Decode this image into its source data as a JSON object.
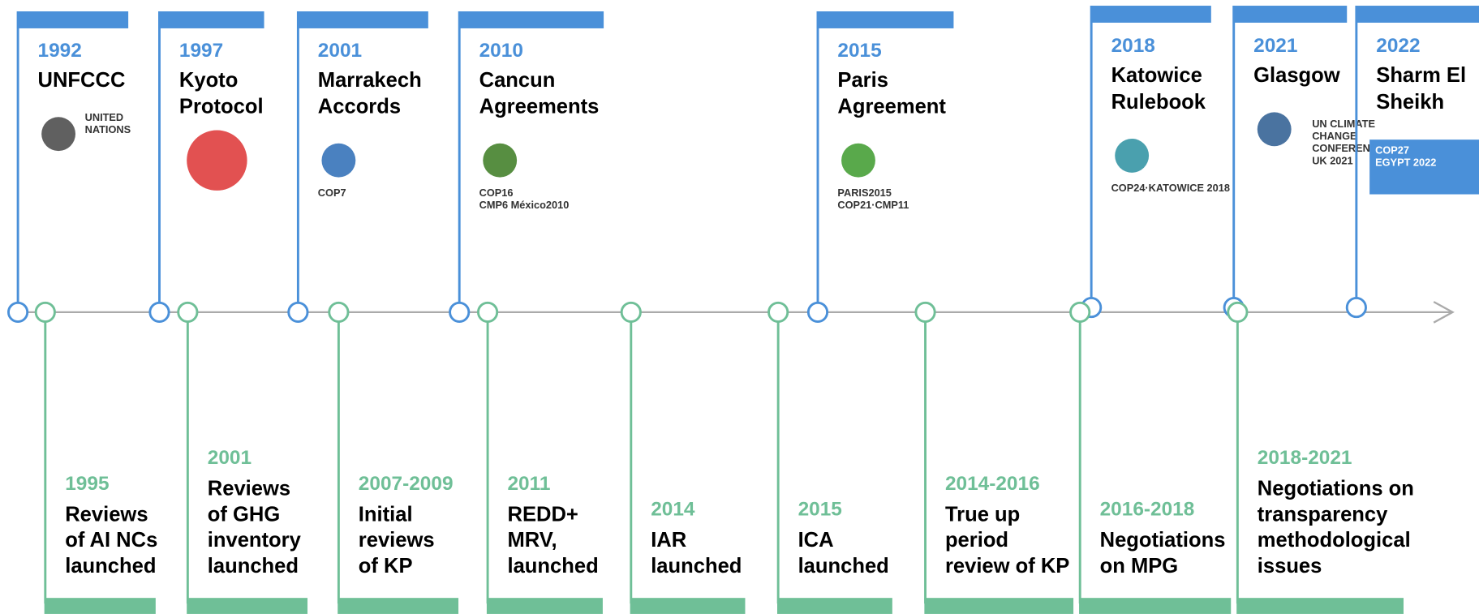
{
  "top": [
    {
      "year": "1992",
      "lines": [
        "UNFCCC"
      ],
      "logo": [
        "UNITED",
        "NATIONS"
      ]
    },
    {
      "year": "1997",
      "lines": [
        "Kyoto",
        "Protocol"
      ],
      "logo": []
    },
    {
      "year": "2001",
      "lines": [
        "Marrakech",
        "Accords"
      ],
      "logo": [
        "COP7"
      ]
    },
    {
      "year": "2010",
      "lines": [
        "Cancun",
        "Agreements"
      ],
      "logo": [
        "COP16",
        "CMP6 México2010"
      ]
    },
    {
      "year": "2015",
      "lines": [
        "Paris",
        "Agreement"
      ],
      "logo": [
        "PARIS2015",
        "COP21·CMP11"
      ]
    },
    {
      "year": "2018",
      "lines": [
        "Katowice",
        "Rulebook"
      ],
      "logo": [
        "COP24·KATOWICE 2018"
      ]
    },
    {
      "year": "2021",
      "lines": [
        "Glasgow"
      ],
      "logo": [
        "UN CLIMATE",
        "CHANGE",
        "CONFERENCE",
        "UK 2021"
      ]
    },
    {
      "year": "2022",
      "lines": [
        "Sharm El",
        "Sheikh"
      ],
      "logo": [
        "COP27",
        "EGYPT 2022"
      ]
    }
  ],
  "bottom": [
    {
      "year": "1995",
      "lines": [
        "Reviews",
        "of AI NCs",
        "launched"
      ]
    },
    {
      "year": "2001",
      "lines": [
        "Reviews",
        "of GHG",
        "inventory",
        "launched"
      ]
    },
    {
      "year": "2007-2009",
      "lines": [
        "Initial",
        "reviews",
        "of KP"
      ]
    },
    {
      "year": "2011",
      "lines": [
        "REDD+",
        "MRV,",
        "launched"
      ]
    },
    {
      "year": "2014",
      "lines": [
        "IAR",
        "launched"
      ]
    },
    {
      "year": "2015",
      "lines": [
        "ICA",
        "launched"
      ]
    },
    {
      "year": "2014-2016",
      "lines": [
        "True up",
        "period",
        "review of KP"
      ]
    },
    {
      "year": "2016-2018",
      "lines": [
        "Negotiations",
        "on MPG"
      ]
    },
    {
      "year": "2018-2021",
      "lines": [
        "Negotiations on",
        "transparency",
        "methodological",
        "issues"
      ]
    }
  ]
}
